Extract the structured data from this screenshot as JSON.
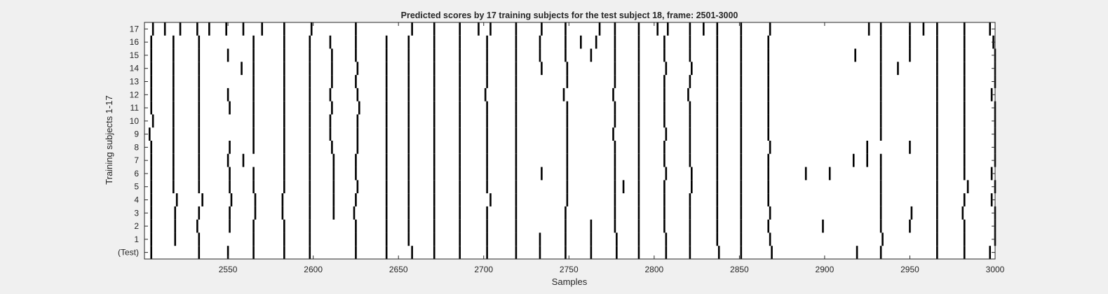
{
  "chart_data": {
    "type": "heatmap",
    "title": "Predicted scores by 17 training subjects for the test subject 18, frame: 2501-3000",
    "xlabel": "Samples",
    "ylabel": "Training subjects 1-17",
    "xlim": [
      2501,
      3000
    ],
    "xticks": [
      2550,
      2600,
      2650,
      2700,
      2750,
      2800,
      2850,
      2900,
      2950,
      3000
    ],
    "yticklabels": [
      "(Test)",
      "1",
      "2",
      "3",
      "4",
      "5",
      "6",
      "7",
      "8",
      "9",
      "10",
      "11",
      "12",
      "13",
      "14",
      "15",
      "16",
      "17"
    ],
    "grid": false,
    "colors": {
      "background": "#ffffff",
      "marker": "#000000"
    },
    "rows": [
      {
        "label": "(Test)",
        "events": [
          2505,
          2533,
          2550,
          2565,
          2583,
          2598,
          2625,
          2643,
          2658,
          2671,
          2686,
          2702,
          2719,
          2733,
          2748,
          2763,
          2778,
          2791,
          2807,
          2821,
          2838,
          2851,
          2869,
          2919,
          2933,
          2966,
          2982,
          2997
        ]
      },
      {
        "label": "1",
        "events": [
          2505,
          2519,
          2533,
          2565,
          2583,
          2598,
          2625,
          2643,
          2656,
          2671,
          2686,
          2702,
          2719,
          2733,
          2748,
          2763,
          2778,
          2791,
          2807,
          2821,
          2837,
          2851,
          2868,
          2934,
          2966,
          2982,
          3000
        ]
      },
      {
        "label": "2",
        "events": [
          2505,
          2519,
          2532,
          2551,
          2565,
          2583,
          2598,
          2625,
          2643,
          2656,
          2671,
          2686,
          2702,
          2719,
          2748,
          2763,
          2777,
          2791,
          2806,
          2821,
          2837,
          2851,
          2867,
          2899,
          2933,
          2950,
          2966,
          2982,
          3000
        ]
      },
      {
        "label": "3",
        "events": [
          2505,
          2519,
          2533,
          2551,
          2566,
          2582,
          2598,
          2612,
          2624,
          2643,
          2656,
          2671,
          2686,
          2702,
          2719,
          2748,
          2777,
          2791,
          2806,
          2821,
          2837,
          2851,
          2868,
          2933,
          2951,
          2966,
          2981,
          3000
        ]
      },
      {
        "label": "4",
        "events": [
          2505,
          2520,
          2535,
          2552,
          2566,
          2582,
          2598,
          2612,
          2625,
          2643,
          2656,
          2671,
          2686,
          2704,
          2719,
          2749,
          2777,
          2791,
          2806,
          2821,
          2837,
          2851,
          2867,
          2933,
          2966,
          2982,
          2998
        ]
      },
      {
        "label": "5",
        "events": [
          2505,
          2518,
          2533,
          2551,
          2565,
          2583,
          2598,
          2612,
          2626,
          2643,
          2656,
          2671,
          2686,
          2702,
          2719,
          2749,
          2777,
          2782,
          2791,
          2806,
          2822,
          2837,
          2851,
          2867,
          2933,
          2966,
          2984,
          3000
        ]
      },
      {
        "label": "6",
        "events": [
          2505,
          2518,
          2533,
          2551,
          2565,
          2583,
          2598,
          2612,
          2625,
          2643,
          2656,
          2671,
          2686,
          2702,
          2719,
          2734,
          2749,
          2777,
          2791,
          2807,
          2822,
          2837,
          2851,
          2867,
          2889,
          2903,
          2933,
          2966,
          2982,
          2998
        ]
      },
      {
        "label": "7",
        "events": [
          2505,
          2518,
          2533,
          2550,
          2559,
          2583,
          2598,
          2612,
          2625,
          2643,
          2656,
          2671,
          2686,
          2702,
          2719,
          2749,
          2777,
          2791,
          2806,
          2821,
          2837,
          2851,
          2867,
          2917,
          2925,
          2933,
          2966,
          2982,
          3000
        ]
      },
      {
        "label": "8",
        "events": [
          2505,
          2518,
          2533,
          2551,
          2565,
          2583,
          2598,
          2611,
          2626,
          2643,
          2656,
          2671,
          2686,
          2702,
          2719,
          2749,
          2777,
          2791,
          2806,
          2821,
          2837,
          2851,
          2868,
          2925,
          2950,
          2966,
          2982,
          3000
        ]
      },
      {
        "label": "9",
        "events": [
          2504,
          2518,
          2533,
          2565,
          2583,
          2598,
          2610,
          2626,
          2643,
          2656,
          2671,
          2686,
          2702,
          2719,
          2749,
          2776,
          2791,
          2807,
          2821,
          2837,
          2851,
          2867,
          2933,
          2966,
          2982,
          3000
        ]
      },
      {
        "label": "10",
        "events": [
          2506,
          2518,
          2533,
          2565,
          2583,
          2598,
          2610,
          2626,
          2643,
          2656,
          2671,
          2686,
          2702,
          2719,
          2749,
          2777,
          2791,
          2806,
          2821,
          2837,
          2851,
          2867,
          2933,
          2966,
          2982,
          3000
        ]
      },
      {
        "label": "11",
        "events": [
          2505,
          2518,
          2533,
          2551,
          2565,
          2583,
          2598,
          2611,
          2627,
          2643,
          2656,
          2671,
          2686,
          2702,
          2719,
          2749,
          2777,
          2791,
          2806,
          2821,
          2837,
          2851,
          2867,
          2933,
          2966,
          2982,
          3000
        ]
      },
      {
        "label": "12",
        "events": [
          2505,
          2518,
          2533,
          2550,
          2565,
          2583,
          2598,
          2610,
          2626,
          2643,
          2656,
          2671,
          2686,
          2701,
          2719,
          2747,
          2776,
          2791,
          2806,
          2820,
          2837,
          2851,
          2867,
          2933,
          2966,
          2982,
          2998
        ]
      },
      {
        "label": "13",
        "events": [
          2505,
          2518,
          2533,
          2565,
          2583,
          2598,
          2611,
          2625,
          2643,
          2656,
          2671,
          2686,
          2702,
          2719,
          2749,
          2777,
          2791,
          2806,
          2821,
          2837,
          2851,
          2867,
          2933,
          2966,
          2982,
          3000
        ]
      },
      {
        "label": "14",
        "events": [
          2505,
          2518,
          2533,
          2558,
          2565,
          2583,
          2598,
          2611,
          2626,
          2643,
          2656,
          2671,
          2686,
          2702,
          2719,
          2734,
          2749,
          2777,
          2791,
          2807,
          2822,
          2837,
          2851,
          2867,
          2933,
          2943,
          2966,
          2982,
          3000
        ]
      },
      {
        "label": "15",
        "events": [
          2505,
          2518,
          2533,
          2550,
          2565,
          2583,
          2598,
          2611,
          2625,
          2643,
          2656,
          2671,
          2686,
          2702,
          2719,
          2733,
          2748,
          2763,
          2777,
          2791,
          2806,
          2821,
          2837,
          2851,
          2867,
          2918,
          2933,
          2950,
          2966,
          2982,
          3000
        ]
      },
      {
        "label": "16",
        "events": [
          2505,
          2518,
          2533,
          2565,
          2583,
          2598,
          2610,
          2625,
          2643,
          2656,
          2671,
          2686,
          2702,
          2719,
          2733,
          2748,
          2757,
          2766,
          2777,
          2791,
          2806,
          2821,
          2837,
          2851,
          2867,
          2933,
          2950,
          2966,
          2982,
          2999
        ]
      },
      {
        "label": "17",
        "events": [
          2506,
          2513,
          2522,
          2532,
          2539,
          2549,
          2559,
          2570,
          2583,
          2599,
          2625,
          2658,
          2671,
          2686,
          2697,
          2704,
          2719,
          2734,
          2748,
          2768,
          2777,
          2791,
          2802,
          2808,
          2821,
          2829,
          2837,
          2851,
          2868,
          2926,
          2933,
          2950,
          2958,
          2966,
          2982,
          2997
        ]
      }
    ]
  }
}
